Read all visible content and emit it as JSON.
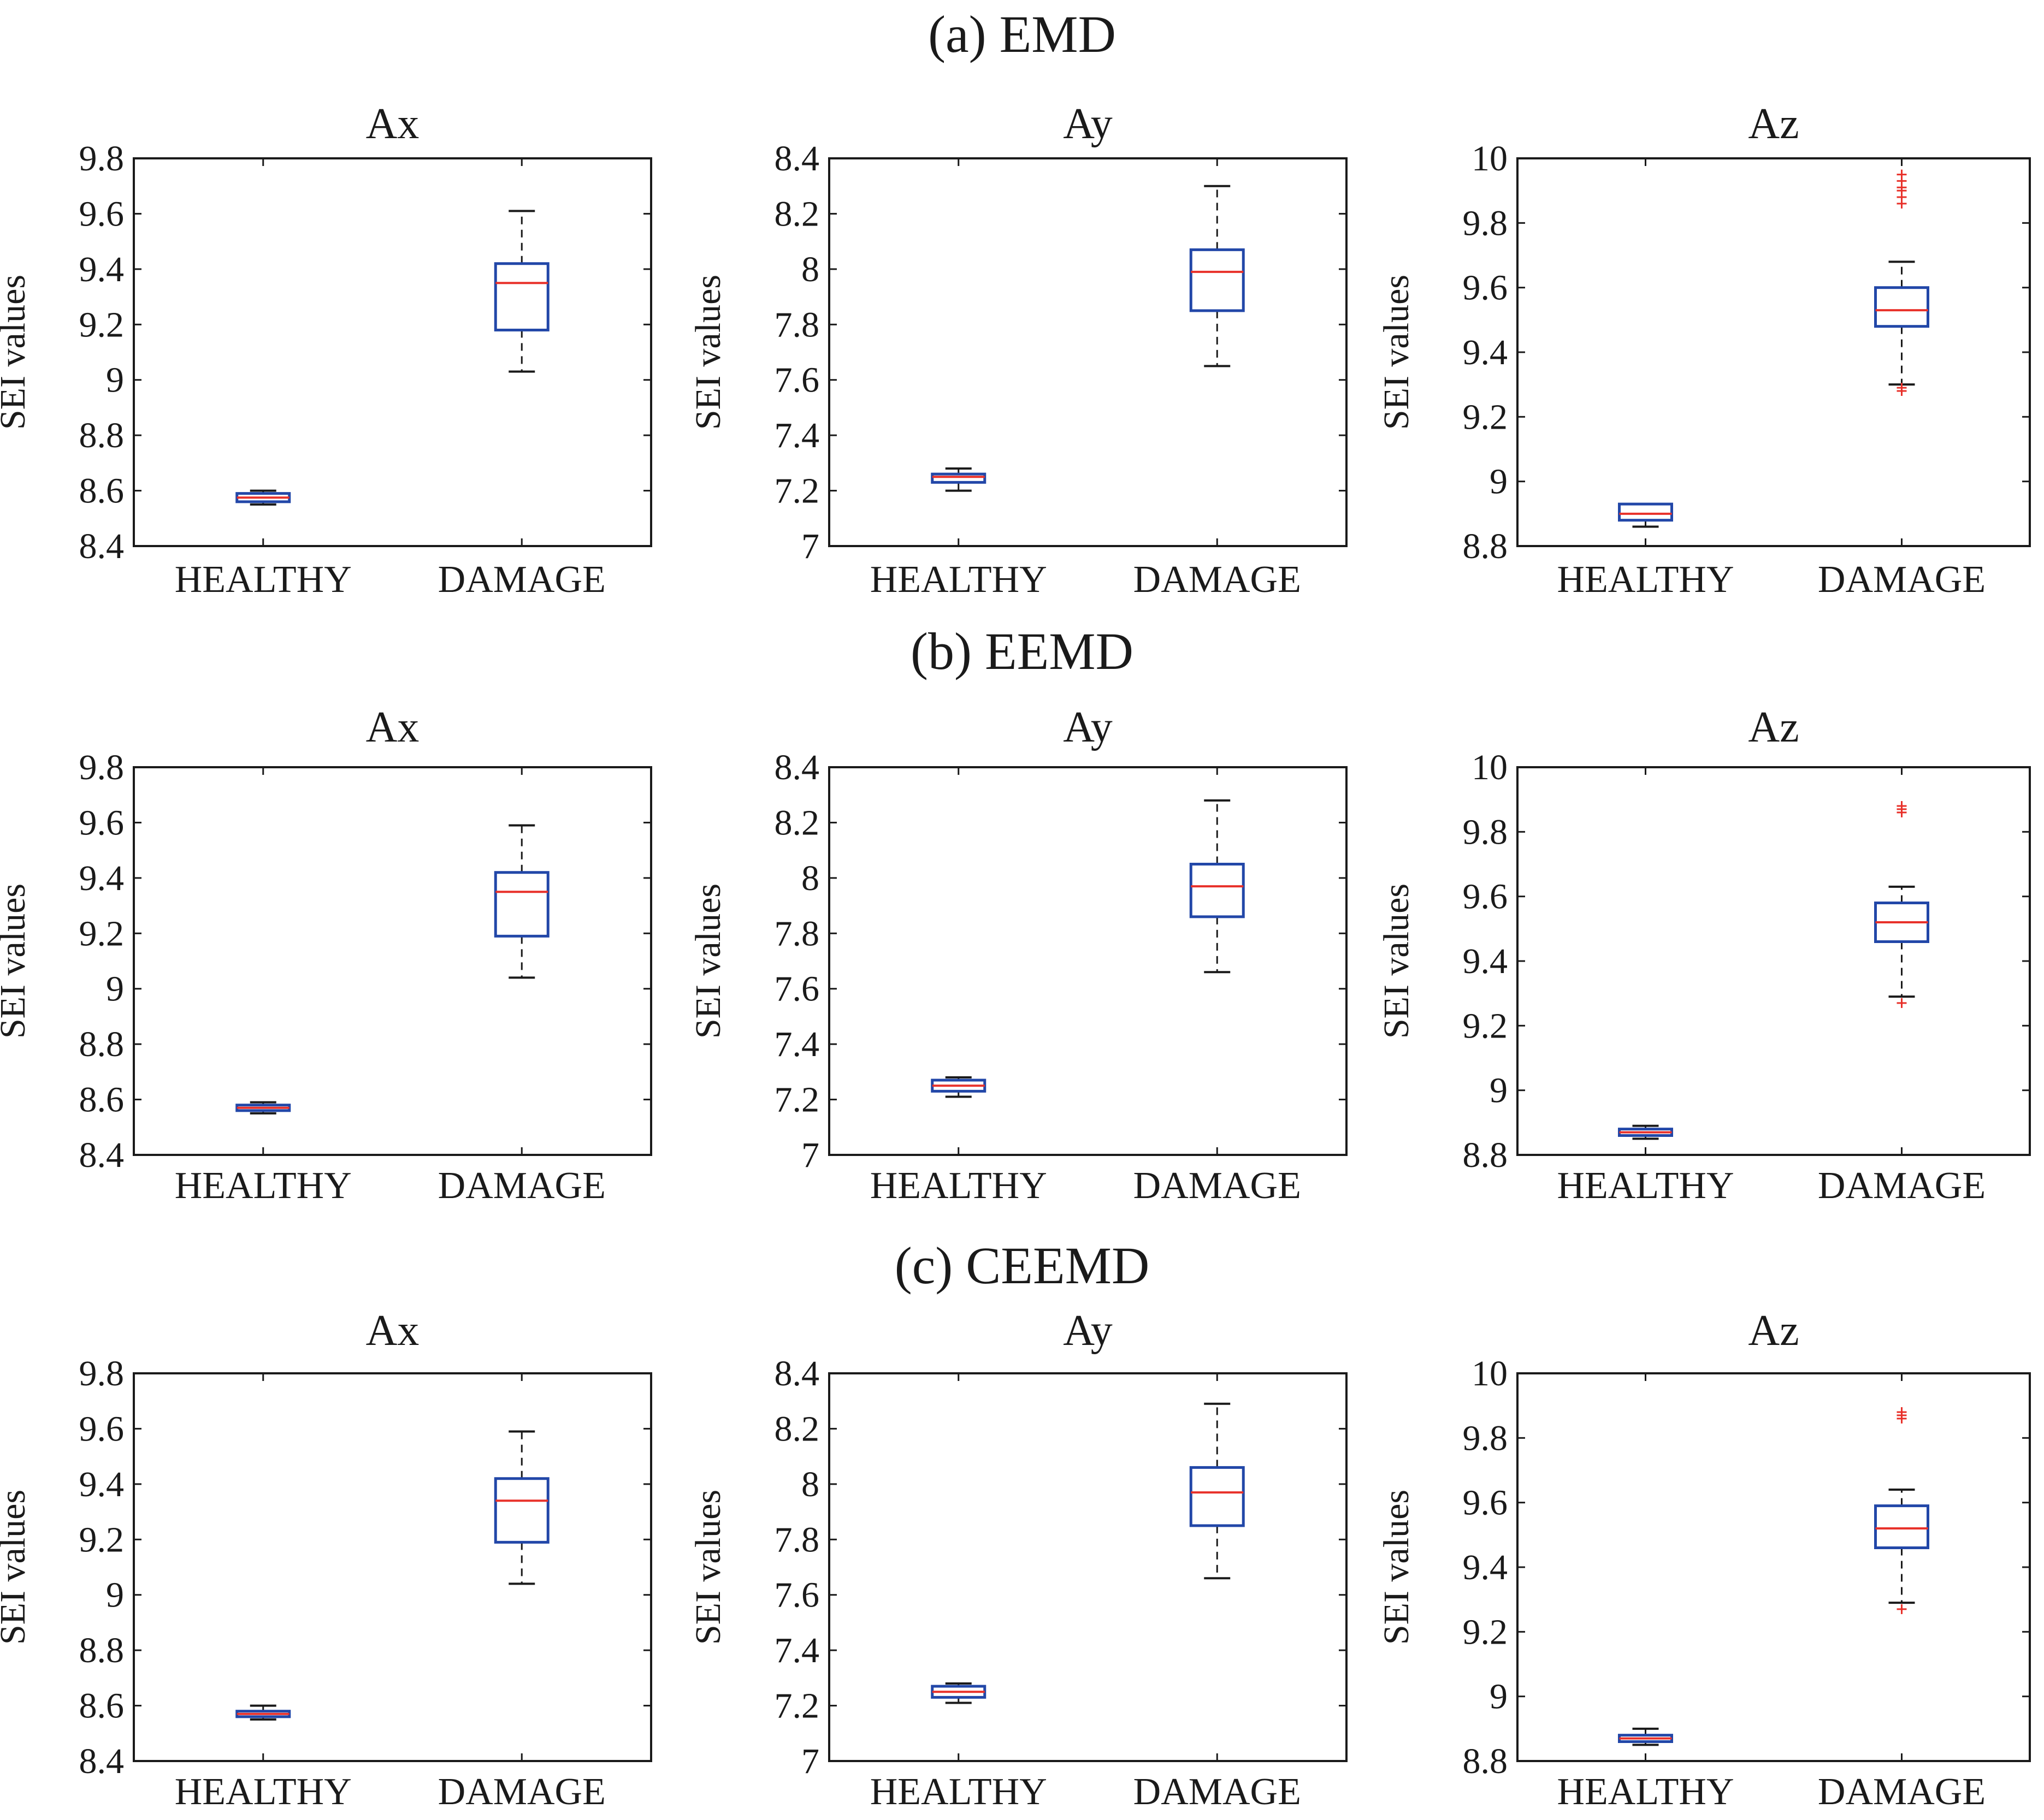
{
  "colors": {
    "box": "#2247a8",
    "median": "#e8312a",
    "outlier": "#e8312a",
    "whisker": "#1a1a1a",
    "frame": "#1a1a1a"
  },
  "chart_data": [
    {
      "section": "(a) EMD",
      "panels": [
        {
          "type": "box",
          "title": "Ax",
          "ylabel": "SEI values",
          "ylim": [
            8.4,
            9.8
          ],
          "yticks": [
            "8.4",
            "8.6",
            "8.8",
            "9",
            "9.2",
            "9.4",
            "9.6",
            "9.8"
          ],
          "categories": [
            "HEALTHY",
            "DAMAGE"
          ],
          "boxes": [
            {
              "category": "HEALTHY",
              "min": 8.55,
              "q1": 8.56,
              "median": 8.575,
              "q3": 8.59,
              "max": 8.6,
              "outliers": []
            },
            {
              "category": "DAMAGE",
              "min": 9.03,
              "q1": 9.18,
              "median": 9.35,
              "q3": 9.42,
              "max": 9.61,
              "outliers": []
            }
          ]
        },
        {
          "type": "box",
          "title": "Ay",
          "ylabel": "SEI values",
          "ylim": [
            7.0,
            8.4
          ],
          "yticks": [
            "7",
            "7.2",
            "7.4",
            "7.6",
            "7.8",
            "8",
            "8.2",
            "8.4"
          ],
          "categories": [
            "HEALTHY",
            "DAMAGE"
          ],
          "boxes": [
            {
              "category": "HEALTHY",
              "min": 7.2,
              "q1": 7.23,
              "median": 7.25,
              "q3": 7.26,
              "max": 7.28,
              "outliers": []
            },
            {
              "category": "DAMAGE",
              "min": 7.65,
              "q1": 7.85,
              "median": 7.99,
              "q3": 8.07,
              "max": 8.3,
              "outliers": []
            }
          ]
        },
        {
          "type": "box",
          "title": "Az",
          "ylabel": "SEI values",
          "ylim": [
            8.8,
            10.0
          ],
          "yticks": [
            "8.8",
            "9",
            "9.2",
            "9.4",
            "9.6",
            "9.8",
            "10"
          ],
          "categories": [
            "HEALTHY",
            "DAMAGE"
          ],
          "boxes": [
            {
              "category": "HEALTHY",
              "min": 8.86,
              "q1": 8.88,
              "median": 8.9,
              "q3": 8.93,
              "max": 8.93,
              "outliers": []
            },
            {
              "category": "DAMAGE",
              "min": 9.3,
              "q1": 9.48,
              "median": 9.53,
              "q3": 9.6,
              "max": 9.68,
              "outliers": [
                9.28,
                9.29,
                9.86,
                9.88,
                9.9,
                9.91,
                9.93,
                9.95
              ]
            }
          ]
        }
      ]
    },
    {
      "section": "(b) EEMD",
      "panels": [
        {
          "type": "box",
          "title": "Ax",
          "ylabel": "SEI values",
          "ylim": [
            8.4,
            9.8
          ],
          "yticks": [
            "8.4",
            "8.6",
            "8.8",
            "9",
            "9.2",
            "9.4",
            "9.6",
            "9.8"
          ],
          "categories": [
            "HEALTHY",
            "DAMAGE"
          ],
          "boxes": [
            {
              "category": "HEALTHY",
              "min": 8.55,
              "q1": 8.56,
              "median": 8.57,
              "q3": 8.58,
              "max": 8.59,
              "outliers": []
            },
            {
              "category": "DAMAGE",
              "min": 9.04,
              "q1": 9.19,
              "median": 9.35,
              "q3": 9.42,
              "max": 9.59,
              "outliers": []
            }
          ]
        },
        {
          "type": "box",
          "title": "Ay",
          "ylabel": "SEI values",
          "ylim": [
            7.0,
            8.4
          ],
          "yticks": [
            "7",
            "7.2",
            "7.4",
            "7.6",
            "7.8",
            "8",
            "8.2",
            "8.4"
          ],
          "categories": [
            "HEALTHY",
            "DAMAGE"
          ],
          "boxes": [
            {
              "category": "HEALTHY",
              "min": 7.21,
              "q1": 7.23,
              "median": 7.25,
              "q3": 7.27,
              "max": 7.28,
              "outliers": []
            },
            {
              "category": "DAMAGE",
              "min": 7.66,
              "q1": 7.86,
              "median": 7.97,
              "q3": 8.05,
              "max": 8.28,
              "outliers": []
            }
          ]
        },
        {
          "type": "box",
          "title": "Az",
          "ylabel": "SEI values",
          "ylim": [
            8.8,
            10.0
          ],
          "yticks": [
            "8.8",
            "9",
            "9.2",
            "9.4",
            "9.6",
            "9.8",
            "10"
          ],
          "categories": [
            "HEALTHY",
            "DAMAGE"
          ],
          "boxes": [
            {
              "category": "HEALTHY",
              "min": 8.85,
              "q1": 8.86,
              "median": 8.87,
              "q3": 8.88,
              "max": 8.89,
              "outliers": []
            },
            {
              "category": "DAMAGE",
              "min": 9.29,
              "q1": 9.46,
              "median": 9.52,
              "q3": 9.58,
              "max": 9.63,
              "outliers": [
                9.27,
                9.86,
                9.87,
                9.88
              ]
            }
          ]
        }
      ]
    },
    {
      "section": "(c)  CEEMD",
      "panels": [
        {
          "type": "box",
          "title": "Ax",
          "ylabel": "SEI values",
          "ylim": [
            8.4,
            9.8
          ],
          "yticks": [
            "8.4",
            "8.6",
            "8.8",
            "9",
            "9.2",
            "9.4",
            "9.6",
            "9.8"
          ],
          "categories": [
            "HEALTHY",
            "DAMAGE"
          ],
          "boxes": [
            {
              "category": "HEALTHY",
              "min": 8.55,
              "q1": 8.56,
              "median": 8.57,
              "q3": 8.58,
              "max": 8.6,
              "outliers": []
            },
            {
              "category": "DAMAGE",
              "min": 9.04,
              "q1": 9.19,
              "median": 9.34,
              "q3": 9.42,
              "max": 9.59,
              "outliers": []
            }
          ]
        },
        {
          "type": "box",
          "title": "Ay",
          "ylabel": "SEI values",
          "ylim": [
            7.0,
            8.4
          ],
          "yticks": [
            "7",
            "7.2",
            "7.4",
            "7.6",
            "7.8",
            "8",
            "8.2",
            "8.4"
          ],
          "categories": [
            "HEALTHY",
            "DAMAGE"
          ],
          "boxes": [
            {
              "category": "HEALTHY",
              "min": 7.21,
              "q1": 7.23,
              "median": 7.25,
              "q3": 7.27,
              "max": 7.28,
              "outliers": []
            },
            {
              "category": "DAMAGE",
              "min": 7.66,
              "q1": 7.85,
              "median": 7.97,
              "q3": 8.06,
              "max": 8.29,
              "outliers": []
            }
          ]
        },
        {
          "type": "box",
          "title": "Az",
          "ylabel": "SEI values",
          "ylim": [
            8.8,
            10.0
          ],
          "yticks": [
            "8.8",
            "9",
            "9.2",
            "9.4",
            "9.6",
            "9.8",
            "10"
          ],
          "categories": [
            "HEALTHY",
            "DAMAGE"
          ],
          "boxes": [
            {
              "category": "HEALTHY",
              "min": 8.85,
              "q1": 8.86,
              "median": 8.87,
              "q3": 8.88,
              "max": 8.9,
              "outliers": []
            },
            {
              "category": "DAMAGE",
              "min": 9.29,
              "q1": 9.46,
              "median": 9.52,
              "q3": 9.59,
              "max": 9.64,
              "outliers": [
                9.27,
                9.86,
                9.87,
                9.88
              ]
            }
          ]
        }
      ]
    }
  ]
}
